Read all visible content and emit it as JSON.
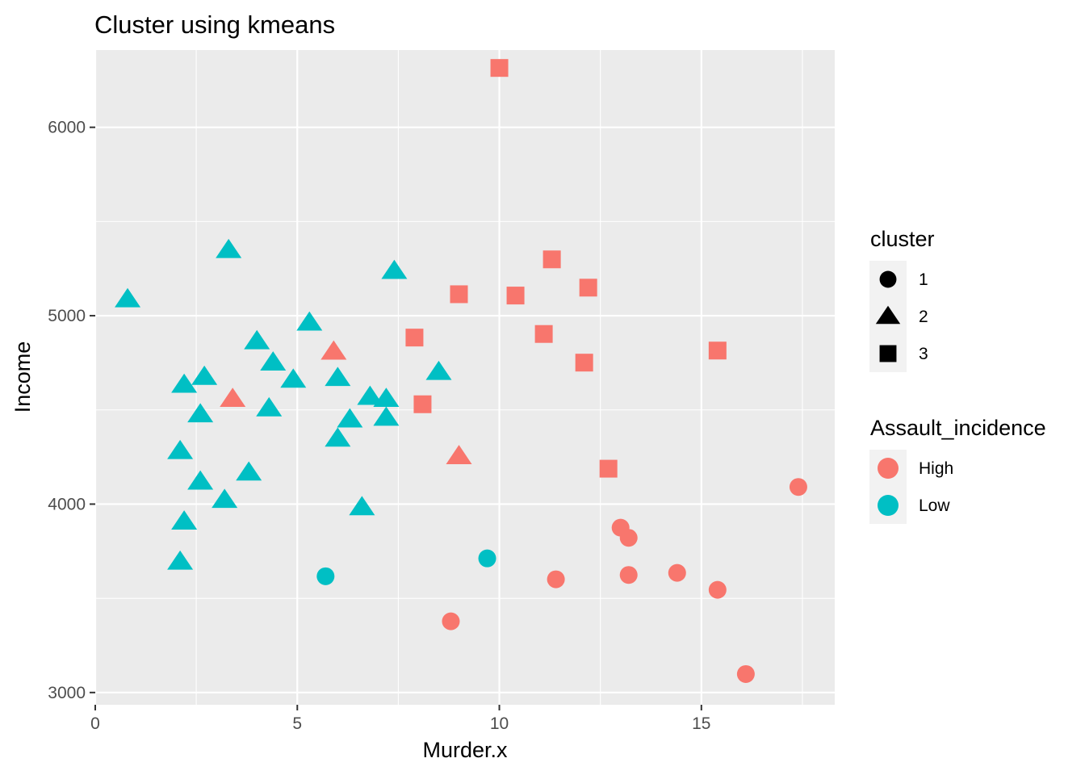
{
  "chart_data": {
    "type": "scatter",
    "title": "Cluster using kmeans",
    "xlabel": "Murder.x",
    "ylabel": "Income",
    "xlim": [
      0,
      18.3
    ],
    "ylim": [
      2935,
      6410
    ],
    "x_ticks": [
      0,
      5,
      10,
      15
    ],
    "y_ticks": [
      3000,
      4000,
      5000,
      6000
    ],
    "grid": true,
    "background": "#EBEBEB",
    "legend_position": "right",
    "legends": [
      {
        "title": "cluster",
        "kind": "shape",
        "entries": [
          {
            "label": "1",
            "shape": "circle"
          },
          {
            "label": "2",
            "shape": "triangle"
          },
          {
            "label": "3",
            "shape": "square"
          }
        ]
      },
      {
        "title": "Assault_incidence",
        "kind": "color",
        "entries": [
          {
            "label": "High",
            "color": "#F8766D"
          },
          {
            "label": "Low",
            "color": "#00BFC4"
          }
        ]
      }
    ],
    "points": [
      {
        "x": 10.0,
        "y": 6315,
        "cluster": "3",
        "assault": "High"
      },
      {
        "x": 11.3,
        "y": 5299,
        "cluster": "3",
        "assault": "High"
      },
      {
        "x": 12.2,
        "y": 5149,
        "cluster": "3",
        "assault": "High"
      },
      {
        "x": 9.0,
        "y": 5114,
        "cluster": "3",
        "assault": "High"
      },
      {
        "x": 10.4,
        "y": 5107,
        "cluster": "3",
        "assault": "High"
      },
      {
        "x": 11.1,
        "y": 4903,
        "cluster": "3",
        "assault": "High"
      },
      {
        "x": 7.9,
        "y": 4884,
        "cluster": "3",
        "assault": "High"
      },
      {
        "x": 15.4,
        "y": 4815,
        "cluster": "3",
        "assault": "High"
      },
      {
        "x": 12.1,
        "y": 4751,
        "cluster": "3",
        "assault": "High"
      },
      {
        "x": 8.1,
        "y": 4530,
        "cluster": "3",
        "assault": "High"
      },
      {
        "x": 12.7,
        "y": 4188,
        "cluster": "3",
        "assault": "High"
      },
      {
        "x": 17.4,
        "y": 4091,
        "cluster": "1",
        "assault": "High"
      },
      {
        "x": 13.0,
        "y": 3875,
        "cluster": "1",
        "assault": "High"
      },
      {
        "x": 13.2,
        "y": 3821,
        "cluster": "1",
        "assault": "High"
      },
      {
        "x": 9.7,
        "y": 3712,
        "cluster": "1",
        "assault": "Low"
      },
      {
        "x": 14.4,
        "y": 3635,
        "cluster": "1",
        "assault": "High"
      },
      {
        "x": 13.2,
        "y": 3624,
        "cluster": "1",
        "assault": "High"
      },
      {
        "x": 5.7,
        "y": 3617,
        "cluster": "1",
        "assault": "Low"
      },
      {
        "x": 11.4,
        "y": 3601,
        "cluster": "1",
        "assault": "High"
      },
      {
        "x": 15.4,
        "y": 3545,
        "cluster": "1",
        "assault": "High"
      },
      {
        "x": 8.8,
        "y": 3378,
        "cluster": "1",
        "assault": "High"
      },
      {
        "x": 16.1,
        "y": 3098,
        "cluster": "1",
        "assault": "High"
      },
      {
        "x": 3.3,
        "y": 5348,
        "cluster": "2",
        "assault": "Low"
      },
      {
        "x": 7.4,
        "y": 5237,
        "cluster": "2",
        "assault": "Low"
      },
      {
        "x": 0.8,
        "y": 5087,
        "cluster": "2",
        "assault": "Low"
      },
      {
        "x": 5.3,
        "y": 4963,
        "cluster": "2",
        "assault": "Low"
      },
      {
        "x": 4.0,
        "y": 4864,
        "cluster": "2",
        "assault": "Low"
      },
      {
        "x": 5.9,
        "y": 4809,
        "cluster": "2",
        "assault": "High"
      },
      {
        "x": 4.4,
        "y": 4751,
        "cluster": "2",
        "assault": "Low"
      },
      {
        "x": 8.5,
        "y": 4701,
        "cluster": "2",
        "assault": "Low"
      },
      {
        "x": 2.7,
        "y": 4675,
        "cluster": "2",
        "assault": "Low"
      },
      {
        "x": 6.0,
        "y": 4669,
        "cluster": "2",
        "assault": "Low"
      },
      {
        "x": 4.9,
        "y": 4660,
        "cluster": "2",
        "assault": "Low"
      },
      {
        "x": 2.2,
        "y": 4633,
        "cluster": "2",
        "assault": "Low"
      },
      {
        "x": 6.8,
        "y": 4569,
        "cluster": "2",
        "assault": "Low"
      },
      {
        "x": 7.2,
        "y": 4558,
        "cluster": "2",
        "assault": "Low"
      },
      {
        "x": 3.4,
        "y": 4558,
        "cluster": "2",
        "assault": "High"
      },
      {
        "x": 4.3,
        "y": 4508,
        "cluster": "2",
        "assault": "Low"
      },
      {
        "x": 2.6,
        "y": 4476,
        "cluster": "2",
        "assault": "Low"
      },
      {
        "x": 7.2,
        "y": 4458,
        "cluster": "2",
        "assault": "Low"
      },
      {
        "x": 6.3,
        "y": 4449,
        "cluster": "2",
        "assault": "Low"
      },
      {
        "x": 6.0,
        "y": 4347,
        "cluster": "2",
        "assault": "Low"
      },
      {
        "x": 2.1,
        "y": 4281,
        "cluster": "2",
        "assault": "Low"
      },
      {
        "x": 9.0,
        "y": 4254,
        "cluster": "2",
        "assault": "High"
      },
      {
        "x": 3.8,
        "y": 4167,
        "cluster": "2",
        "assault": "Low"
      },
      {
        "x": 2.6,
        "y": 4119,
        "cluster": "2",
        "assault": "Low"
      },
      {
        "x": 3.2,
        "y": 4022,
        "cluster": "2",
        "assault": "Low"
      },
      {
        "x": 6.6,
        "y": 3983,
        "cluster": "2",
        "assault": "Low"
      },
      {
        "x": 2.2,
        "y": 3907,
        "cluster": "2",
        "assault": "Low"
      },
      {
        "x": 2.1,
        "y": 3694,
        "cluster": "2",
        "assault": "Low"
      }
    ]
  }
}
